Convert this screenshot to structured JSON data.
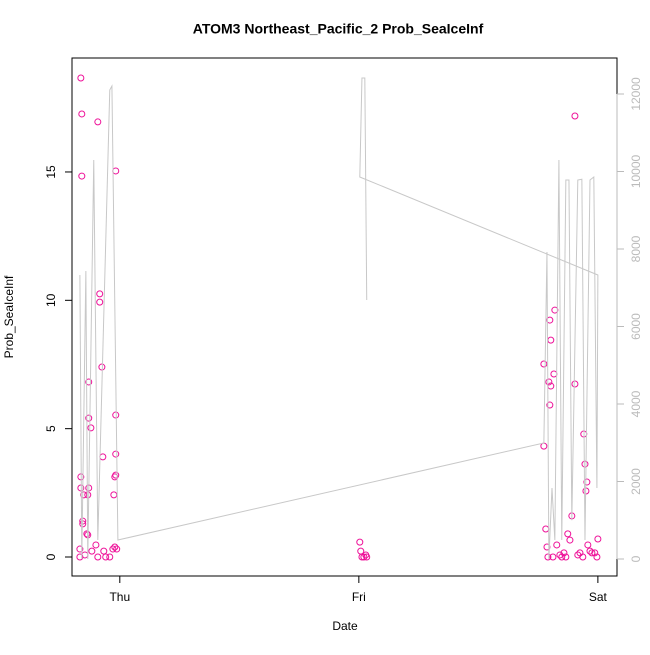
{
  "chart_data": {
    "type": "scatter",
    "title": "ATOM3 Northeast_Pacific_2 Prob_SeaIceInf",
    "x_label": "Date",
    "y_label": "Prob_SeaIceInf",
    "xlim": [
      -0.2,
      2.08
    ],
    "ylim": [
      -0.74,
      19.44
    ],
    "y2lim": [
      -439,
      12929
    ],
    "xticks": [
      {
        "value": 0,
        "label": "Thu"
      },
      {
        "value": 1,
        "label": "Fri"
      },
      {
        "value": 2,
        "label": "Sat"
      }
    ],
    "yticks": [
      0,
      5,
      10,
      15
    ],
    "y2ticks": [
      0,
      2000,
      4000,
      6000,
      8000,
      10000,
      12000
    ],
    "y2color": "#bbbbbb",
    "series": [
      {
        "type": "scatter",
        "color": "#ee1199",
        "x": [
          -0.163,
          -0.159,
          -0.159,
          -0.163,
          -0.163,
          -0.155,
          -0.155,
          -0.151,
          -0.134,
          -0.13,
          -0.13,
          -0.13,
          -0.121,
          -0.092,
          -0.084,
          -0.084,
          -0.075,
          -0.071,
          -0.017,
          -0.017,
          -0.017,
          -0.017,
          -0.021,
          -0.025,
          -0.167,
          -0.167,
          -0.146,
          -0.138,
          -0.134,
          -0.117,
          -0.1,
          -0.092,
          -0.067,
          -0.059,
          -0.042,
          -0.029,
          -0.021,
          -0.013,
          1.004,
          1.008,
          1.013,
          1.021,
          1.029,
          1.033,
          1.774,
          1.774,
          1.782,
          1.787,
          1.795,
          1.799,
          1.803,
          1.803,
          1.799,
          1.816,
          1.82,
          1.828,
          1.841,
          1.858,
          1.874,
          1.883,
          1.891,
          1.904,
          1.904,
          1.941,
          1.946,
          1.954,
          1.95,
          1.958,
          1.967,
          1.975,
          1.987,
          2.0,
          1.996,
          1.791,
          1.812,
          1.849,
          1.866,
          1.916,
          1.925,
          1.937
        ],
        "values": [
          18.66,
          17.26,
          14.84,
          3.12,
          2.69,
          1.4,
          1.29,
          2.42,
          2.42,
          2.69,
          6.82,
          5.41,
          5.03,
          16.95,
          10.25,
          9.93,
          7.4,
          3.9,
          15.04,
          5.53,
          4.01,
          3.19,
          3.12,
          2.42,
          0,
          0.31,
          0.08,
          0.9,
          0.86,
          0.23,
          0.47,
          0,
          0.23,
          0,
          0,
          0.31,
          0.39,
          0.31,
          0.58,
          0.23,
          0,
          0,
          0.08,
          0,
          7.52,
          4.32,
          1.09,
          0.39,
          6.82,
          9.23,
          8.45,
          6.66,
          5.92,
          7.13,
          9.62,
          0.47,
          0.08,
          0.16,
          0.9,
          0.66,
          1.6,
          17.18,
          6.74,
          4.79,
          3.62,
          2.92,
          2.57,
          0.47,
          0.23,
          0.16,
          0.16,
          0.7,
          0,
          0,
          0,
          0,
          0,
          0.08,
          0.16,
          0
        ]
      },
      {
        "type": "line",
        "axis": "y2",
        "color": "#c8c8c8",
        "x": [
          -0.167,
          -0.159,
          -0.142,
          -0.134,
          -0.109,
          -0.092,
          -0.042,
          -0.033,
          -0.008,
          1.774,
          1.787,
          1.795,
          1.808,
          1.82,
          1.837,
          1.849,
          1.866,
          1.879,
          1.891,
          1.916,
          1.933,
          1.946,
          1.967,
          1.983,
          1.996,
          2.0,
          1.004,
          1.013,
          1.025,
          1.033
        ],
        "values": [
          7329,
          0,
          7432,
          0,
          10297,
          490,
          12103,
          12206,
          490,
          2994,
          7922,
          0,
          1832,
          490,
          10297,
          490,
          9781,
          9781,
          1000,
          9781,
          9800,
          490,
          9781,
          9858,
          1832,
          7329,
          9858,
          12413,
          12413,
          6684
        ]
      }
    ]
  }
}
